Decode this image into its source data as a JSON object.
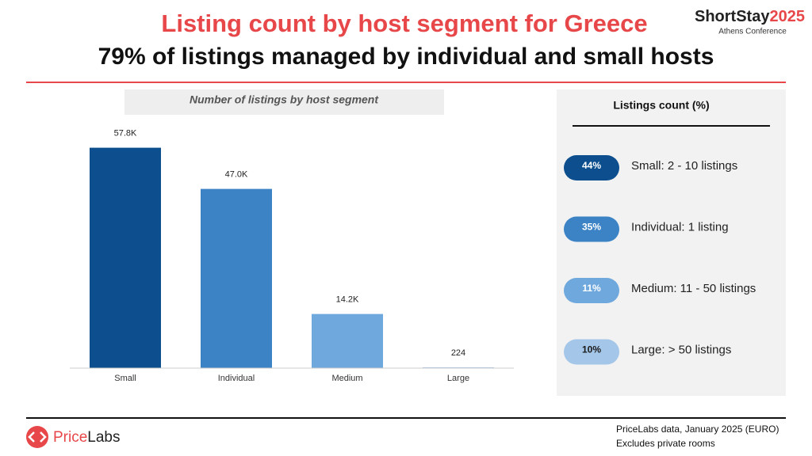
{
  "header": {
    "title": "Listing count by host segment for Greece",
    "subtitle": "79% of listings managed by individual and small hosts",
    "logo_name": "ShortStay",
    "logo_year": "2025",
    "logo_sub": "Athens Conference"
  },
  "chart_data": {
    "type": "bar",
    "title": "Number of listings by host segment",
    "categories": [
      "Small",
      "Individual",
      "Medium",
      "Large"
    ],
    "values": [
      57800,
      47000,
      14200,
      224
    ],
    "value_labels": [
      "57.8K",
      "47.0K",
      "14.2K",
      "224"
    ],
    "colors": [
      "#0d4f8e",
      "#3b83c5",
      "#6fa8dc",
      "#a4c6e8"
    ],
    "ylim": [
      0,
      60000
    ]
  },
  "legend_panel": {
    "title": "Listings count (%)",
    "items": [
      {
        "share": "44%",
        "label": "Small: 2 - 10 listings",
        "color": "#0d4f8e",
        "text_color": "#ffffff"
      },
      {
        "share": "35%",
        "label": "Individual: 1 listing",
        "color": "#3b83c5",
        "text_color": "#ffffff"
      },
      {
        "share": "11%",
        "label": "Medium: 11 - 50 listings",
        "color": "#6fa8dc",
        "text_color": "#ffffff"
      },
      {
        "share": "10%",
        "label": "Large: > 50 listings",
        "color": "#a4c6e8",
        "text_color": "#1a1a1a"
      }
    ]
  },
  "footer": {
    "brand_a": "Price",
    "brand_b": "Labs",
    "note1": "PriceLabs data, January 2025 (EURO)",
    "note2": "Excludes private rooms"
  }
}
